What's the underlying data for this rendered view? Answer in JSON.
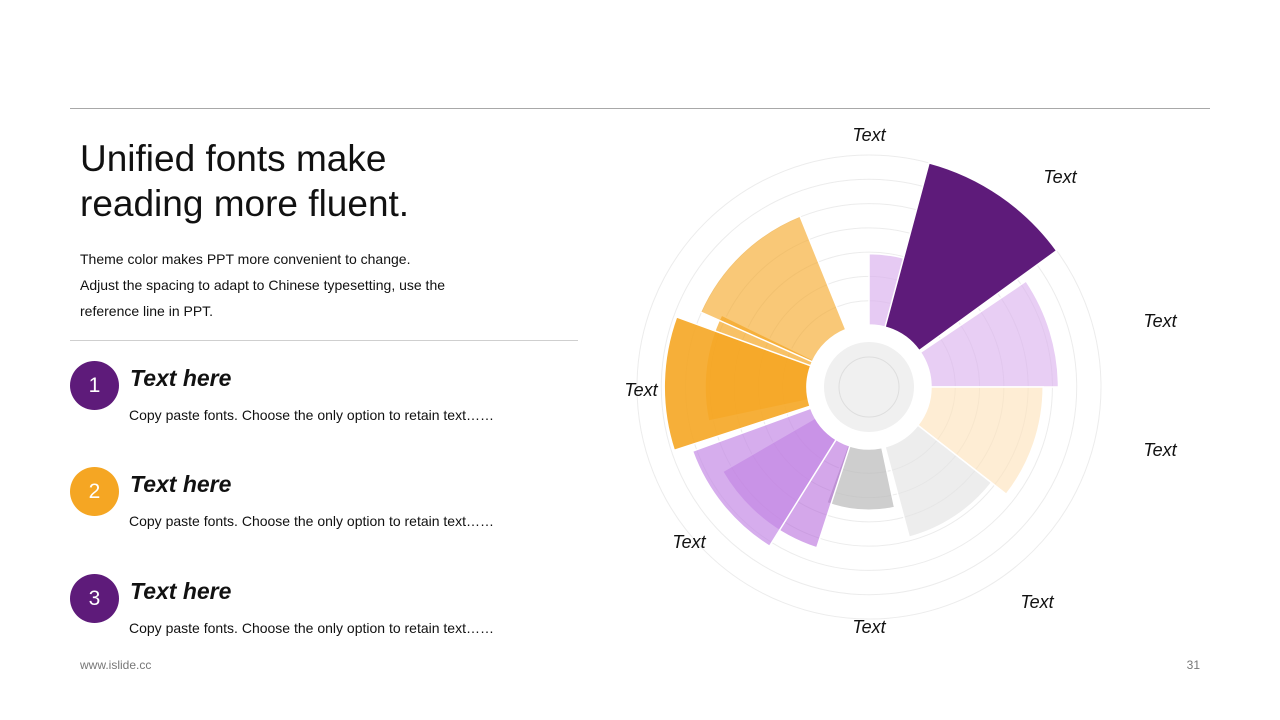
{
  "slide": {
    "title_line1": "Unified fonts make",
    "title_line2": "reading more fluent.",
    "desc_line1": "Theme color makes PPT more convenient  to change.",
    "desc_line2": "Adjust the spacing to adapt to Chinese typesetting, use the",
    "desc_line3": "reference line  in  PPT.",
    "footer_url": "www.islide.cc",
    "page_number": "31"
  },
  "list": [
    {
      "number": "1",
      "title": "Text here",
      "text": "Copy paste fonts. Choose the only option to retain text……",
      "color": "#5e1b7a"
    },
    {
      "number": "2",
      "title": "Text here",
      "text": "Copy paste fonts. Choose the only option to retain text……",
      "color": "#f5a623"
    },
    {
      "number": "3",
      "title": "Text here",
      "text": "Copy paste fonts. Choose the only option to retain text……",
      "color": "#5e1b7a"
    }
  ],
  "colors": {
    "purple_dark": "#5e1b7a",
    "purple_light": "#dcb4ee",
    "orange": "#f5a623",
    "orange_light": "#fde4bd",
    "grey": "#bdbdbd",
    "grey_light": "#e3e3e3"
  },
  "chart_data": {
    "type": "polar-area",
    "title": "",
    "scale_max": 10,
    "rings": 7,
    "segments": [
      {
        "label": "",
        "start_deg": 0,
        "end_deg": 30,
        "value": 4.2,
        "color": "#dcb4ee",
        "opacity": 0.7
      },
      {
        "label": "Text",
        "start_deg": 15,
        "end_deg": 54,
        "value": 10,
        "color": "#5e1b7a",
        "opacity": 1
      },
      {
        "label": "Text",
        "start_deg": 56,
        "end_deg": 90,
        "value": 7.5,
        "color": "#dcb4ee",
        "opacity": 0.65
      },
      {
        "label": "Text",
        "start_deg": 90,
        "end_deg": 128,
        "value": 6.6,
        "color": "#fde4bd",
        "opacity": 0.65
      },
      {
        "label": "Text",
        "start_deg": 128,
        "end_deg": 165,
        "value": 5.5,
        "color": "#e3e3e3",
        "opacity": 0.65
      },
      {
        "label": "",
        "start_deg": 168,
        "end_deg": 200,
        "value": 3.6,
        "color": "#bdbdbd",
        "opacity": 0.75
      },
      {
        "label": "",
        "start_deg": 198,
        "end_deg": 240,
        "value": 6.3,
        "color": "#b15ed9",
        "opacity": 0.55
      },
      {
        "label": "Text",
        "start_deg": 212,
        "end_deg": 250,
        "value": 7.4,
        "color": "#c48ae6",
        "opacity": 0.7
      },
      {
        "label": "",
        "start_deg": 258,
        "end_deg": 296,
        "value": 6.0,
        "color": "#f5a623",
        "opacity": 0.7
      },
      {
        "label": "Text",
        "start_deg": 252,
        "end_deg": 290,
        "value": 8.4,
        "color": "#f5a623",
        "opacity": 0.9
      },
      {
        "label": "",
        "start_deg": 294,
        "end_deg": 338,
        "value": 7.2,
        "color": "#f5a623",
        "opacity": 0.62
      }
    ],
    "extra_labels": [
      "Text",
      "Text"
    ]
  }
}
